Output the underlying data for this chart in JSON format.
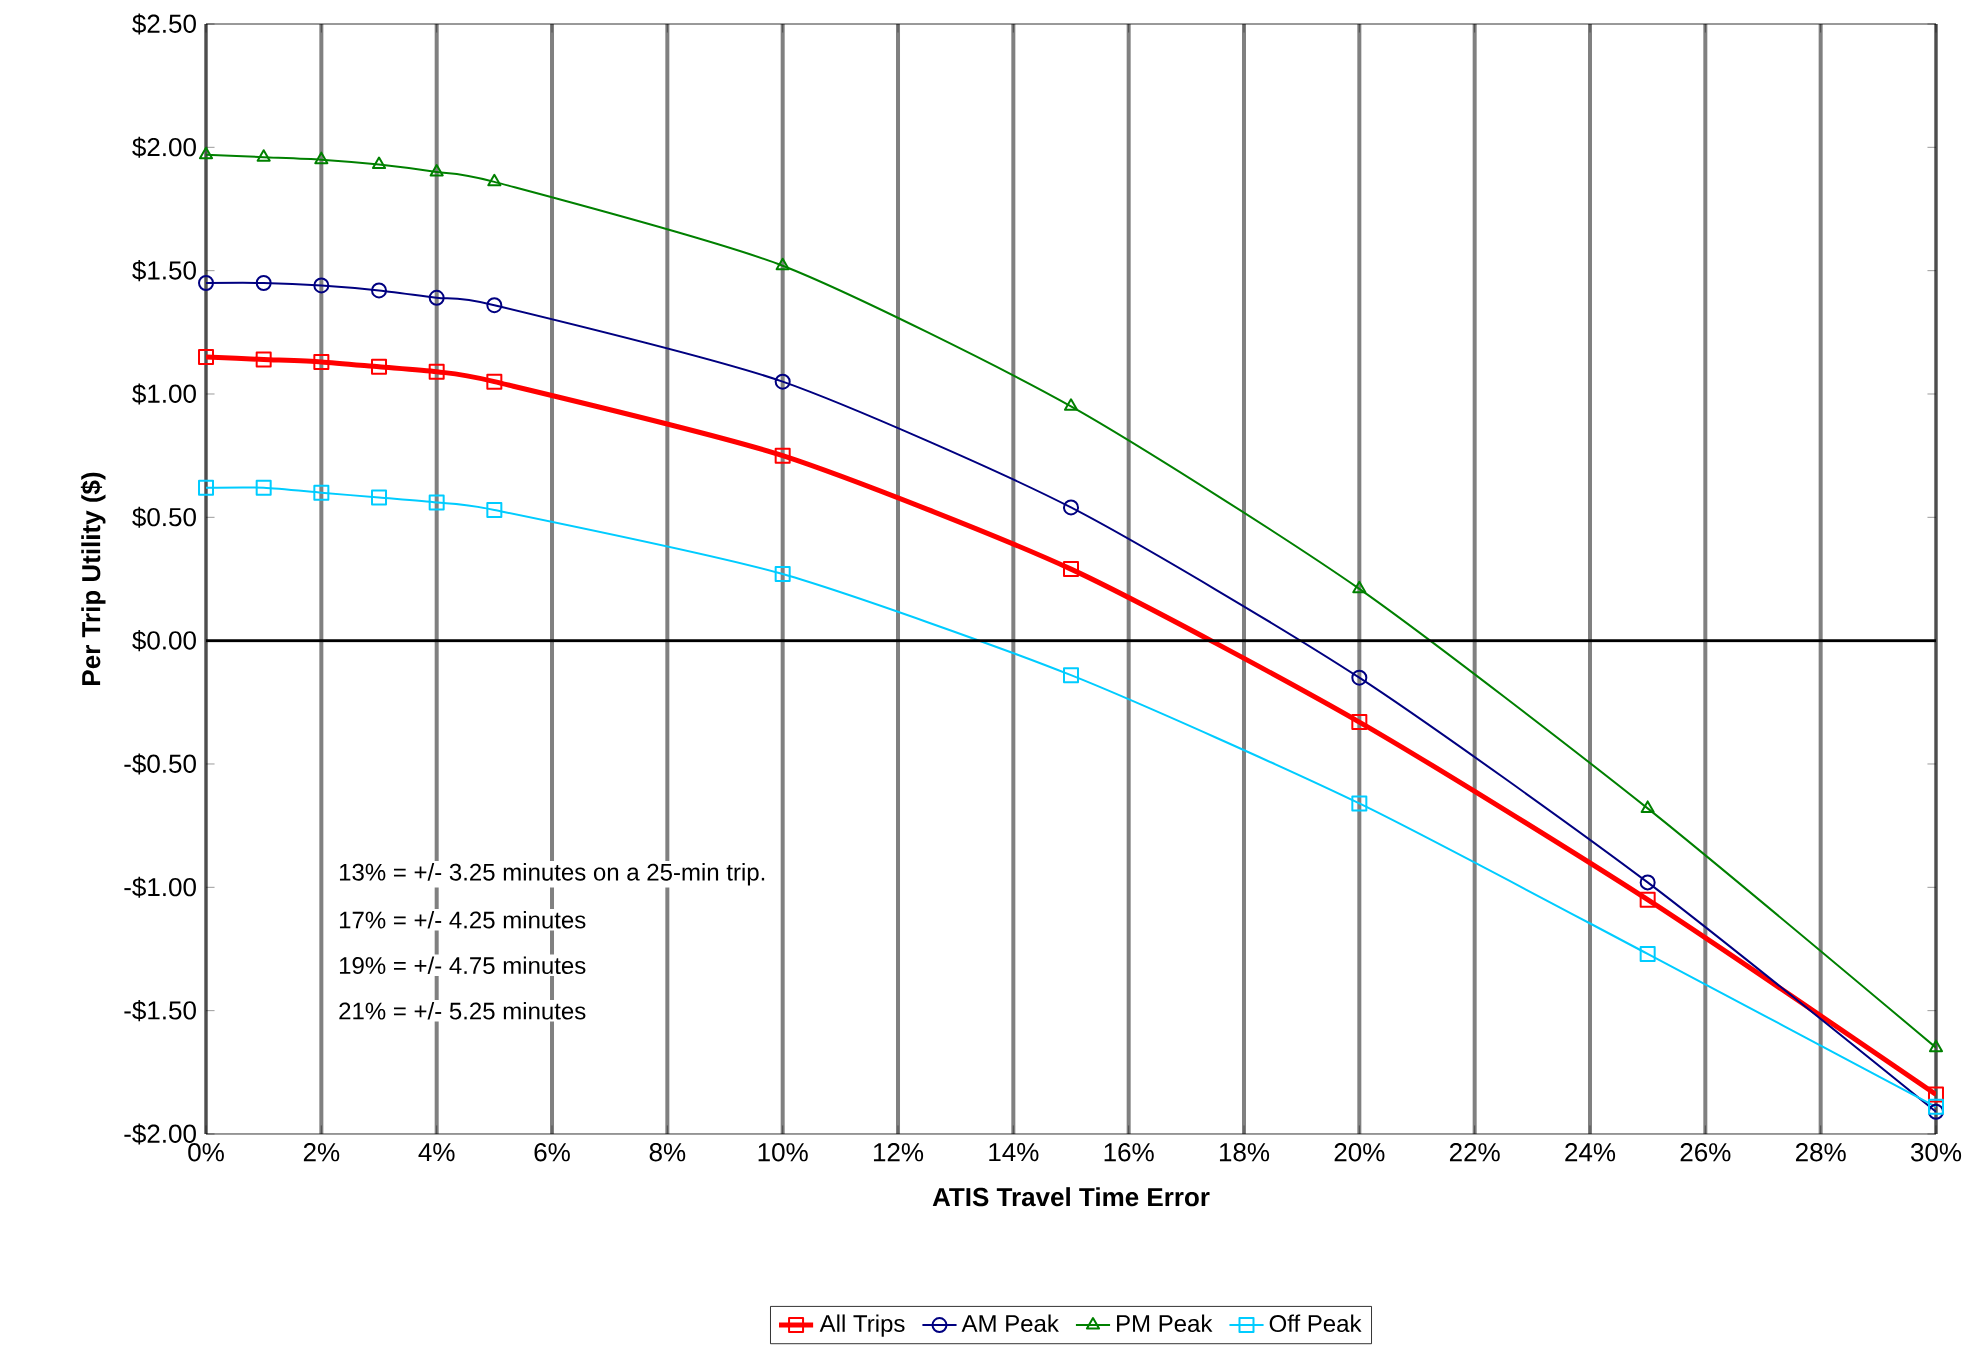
{
  "chart_data": {
    "type": "line",
    "xlabel": "ATIS Travel Time Error",
    "ylabel": "Per Trip Utility ($)",
    "x": [
      0,
      1,
      2,
      3,
      4,
      5,
      10,
      15,
      20,
      25,
      30
    ],
    "series": [
      {
        "name": "All Trips",
        "color": "#ff0000",
        "marker": "square",
        "values": [
          1.15,
          1.14,
          1.13,
          1.11,
          1.09,
          1.05,
          0.75,
          0.29,
          -0.33,
          -1.05,
          -1.84
        ]
      },
      {
        "name": "AM Peak",
        "color": "#000080",
        "marker": "circle",
        "values": [
          1.45,
          1.45,
          1.44,
          1.42,
          1.39,
          1.36,
          1.05,
          0.54,
          -0.15,
          -0.98,
          -1.91
        ]
      },
      {
        "name": "PM Peak",
        "color": "#008000",
        "marker": "triangle",
        "values": [
          1.97,
          1.96,
          1.95,
          1.93,
          1.9,
          1.86,
          1.52,
          0.95,
          0.21,
          -0.68,
          -1.65
        ]
      },
      {
        "name": "Off Peak",
        "color": "#00ccff",
        "marker": "square",
        "values": [
          0.62,
          0.62,
          0.6,
          0.58,
          0.56,
          0.53,
          0.27,
          -0.14,
          -0.66,
          -1.27,
          -1.89
        ]
      }
    ],
    "xlim": [
      0,
      30
    ],
    "ylim": [
      -2,
      2.5
    ],
    "xticks": [
      {
        "value": 0,
        "label": "0%"
      },
      {
        "value": 2,
        "label": "2%"
      },
      {
        "value": 4,
        "label": "4%"
      },
      {
        "value": 6,
        "label": "6%"
      },
      {
        "value": 8,
        "label": "8%"
      },
      {
        "value": 10,
        "label": "10%"
      },
      {
        "value": 12,
        "label": "12%"
      },
      {
        "value": 14,
        "label": "14%"
      },
      {
        "value": 16,
        "label": "16%"
      },
      {
        "value": 18,
        "label": "18%"
      },
      {
        "value": 20,
        "label": "20%"
      },
      {
        "value": 22,
        "label": "22%"
      },
      {
        "value": 24,
        "label": "24%"
      },
      {
        "value": 26,
        "label": "26%"
      },
      {
        "value": 28,
        "label": "28%"
      },
      {
        "value": 30,
        "label": "30%"
      }
    ],
    "yticks": [
      {
        "value": -2,
        "label": "-$2.00"
      },
      {
        "value": -1.5,
        "label": "-$1.50"
      },
      {
        "value": -1,
        "label": "-$1.00"
      },
      {
        "value": -0.5,
        "label": "-$0.50"
      },
      {
        "value": 0,
        "label": "$0.00"
      },
      {
        "value": 0.5,
        "label": "$0.50"
      },
      {
        "value": 1,
        "label": "$1.00"
      },
      {
        "value": 1.5,
        "label": "$1.50"
      },
      {
        "value": 2,
        "label": "$2.00"
      },
      {
        "value": 2.5,
        "label": "$2.50"
      }
    ],
    "grid": "x",
    "legend": "bottom",
    "ref_lines": [
      {
        "axis": "y",
        "value": 0
      }
    ],
    "annotations": [
      "13% = +/- 3.25 minutes on a 25-min trip.",
      "17% = +/- 4.25 minutes",
      "19% = +/- 4.75 minutes",
      "21% = +/- 5.25 minutes"
    ]
  }
}
